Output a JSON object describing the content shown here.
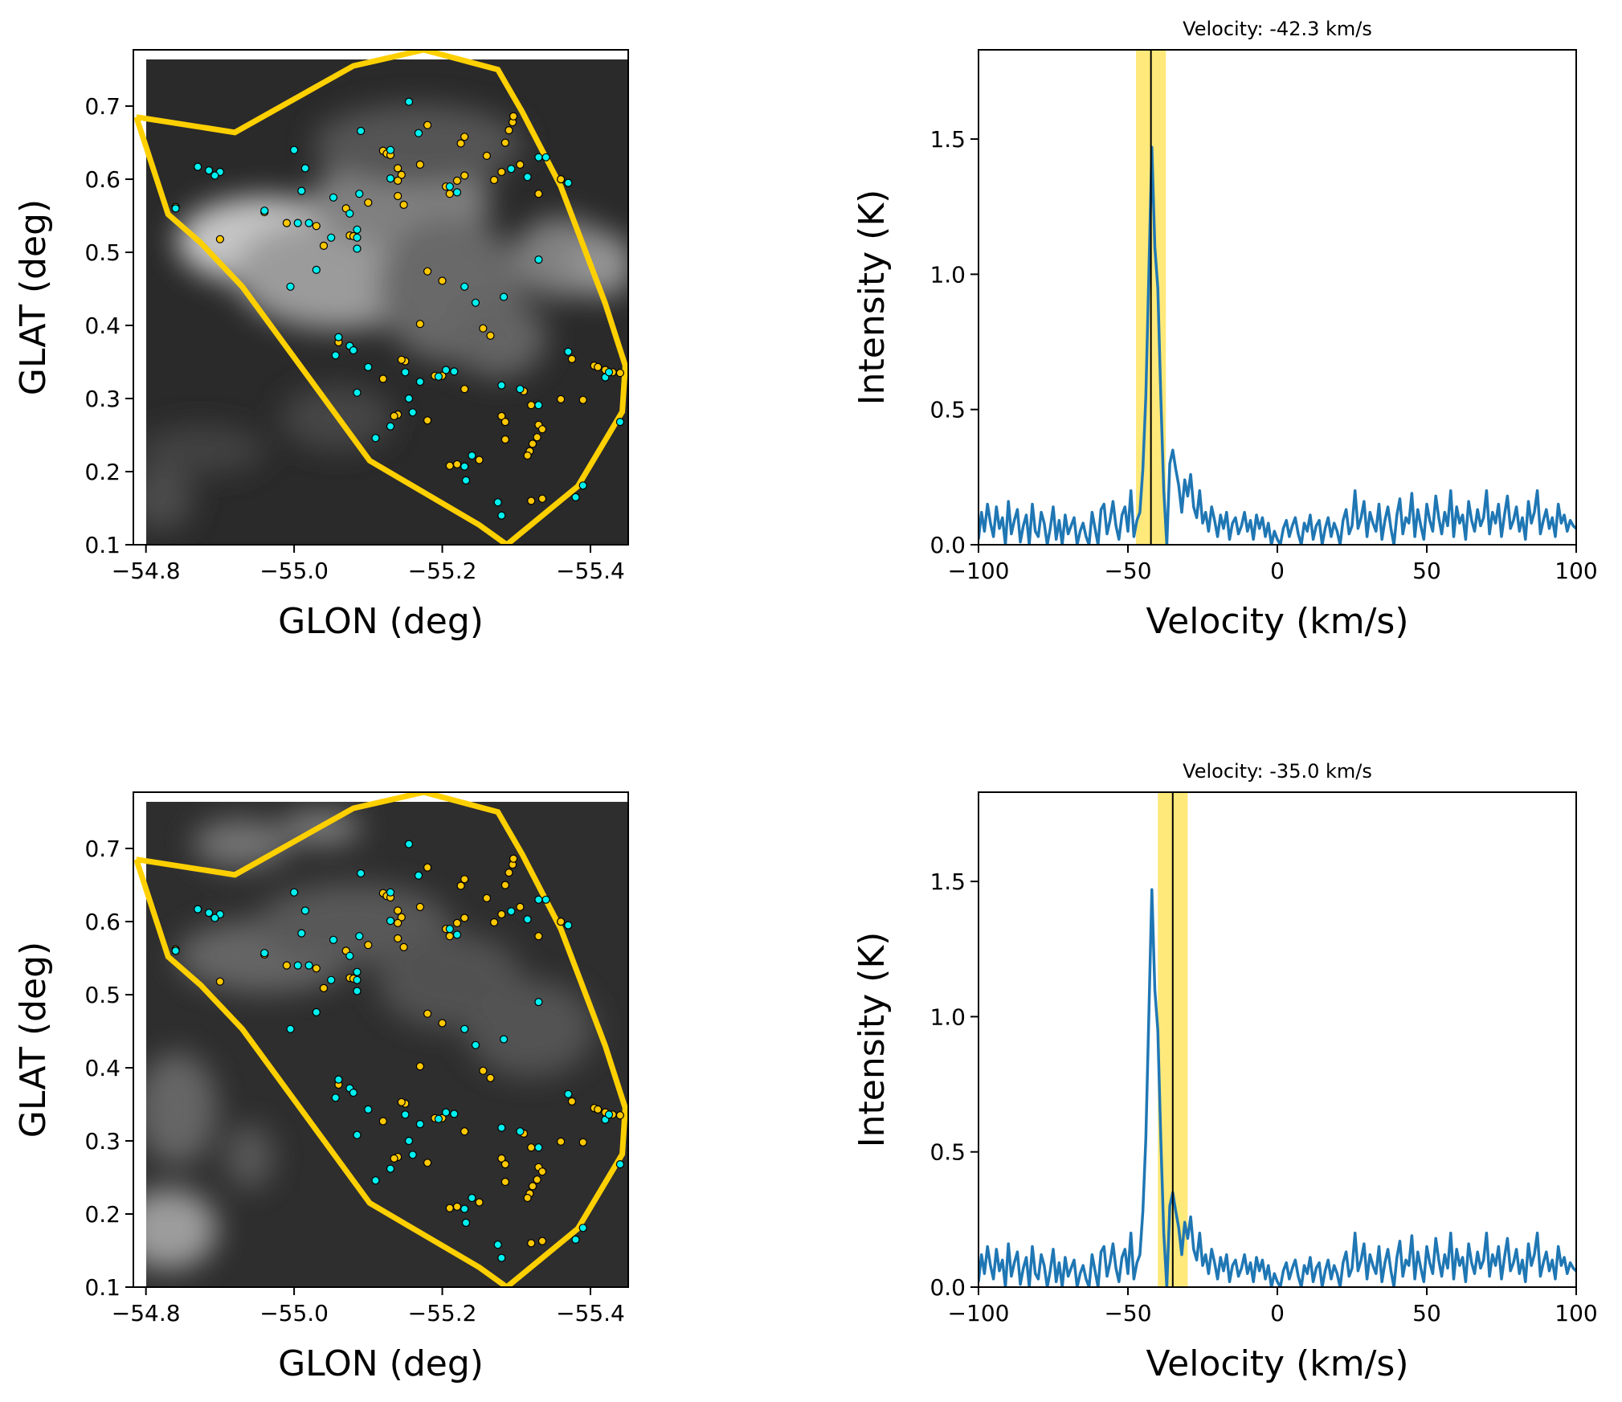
{
  "figure": {
    "panels": [
      "map-top",
      "spectrum-top",
      "map-bottom",
      "spectrum-bottom"
    ]
  },
  "colors": {
    "polygon": "#ffd000",
    "point_cyan": "#00f0f0",
    "point_gold": "#ffc800",
    "spectrum_line": "#1f77b4",
    "band": "#ffe14d",
    "marker_line": "#000000"
  },
  "chart_data": [
    {
      "id": "map-top",
      "type": "scatter",
      "title": "",
      "xlabel": "GLON (deg)",
      "ylabel": "GLAT (deg)",
      "xlim": [
        -54.783,
        -55.451
      ],
      "ylim": [
        0.1,
        0.777
      ],
      "xticks": [
        -54.8,
        -55.0,
        -55.2,
        -55.4
      ],
      "xtick_labels": [
        "−54.8",
        "−55.0",
        "−55.2",
        "−55.4"
      ],
      "yticks": [
        0.1,
        0.2,
        0.3,
        0.4,
        0.5,
        0.6,
        0.7
      ],
      "ytick_labels": [
        "0.1",
        "0.2",
        "0.3",
        "0.4",
        "0.5",
        "0.6",
        "0.7"
      ],
      "background": "grayscale intensity map (integrated emission)",
      "emission_velocity_kms": -42.3
    },
    {
      "id": "spectrum-top",
      "type": "line",
      "title": "Velocity: -42.3 km/s",
      "xlabel": "Velocity (km/s)",
      "ylabel": "Intensity (K)",
      "xlim": [
        -100,
        100
      ],
      "ylim": [
        0,
        1.83
      ],
      "xticks": [
        -100,
        -50,
        0,
        50,
        100
      ],
      "xtick_labels": [
        "−100",
        "−50",
        "0",
        "50",
        "100"
      ],
      "yticks": [
        0.0,
        0.5,
        1.0,
        1.5
      ],
      "ytick_labels": [
        "0.0",
        "0.5",
        "1.0",
        "1.5"
      ],
      "marker_velocity": -42.3,
      "band": [
        -47.3,
        -37.3
      ]
    },
    {
      "id": "map-bottom",
      "type": "scatter",
      "title": "",
      "xlabel": "GLON (deg)",
      "ylabel": "GLAT (deg)",
      "xlim": [
        -54.783,
        -55.451
      ],
      "ylim": [
        0.1,
        0.777
      ],
      "xticks": [
        -54.8,
        -55.0,
        -55.2,
        -55.4
      ],
      "xtick_labels": [
        "−54.8",
        "−55.0",
        "−55.2",
        "−55.4"
      ],
      "yticks": [
        0.1,
        0.2,
        0.3,
        0.4,
        0.5,
        0.6,
        0.7
      ],
      "ytick_labels": [
        "0.1",
        "0.2",
        "0.3",
        "0.4",
        "0.5",
        "0.6",
        "0.7"
      ],
      "background": "grayscale intensity map (integrated emission)",
      "emission_velocity_kms": -35.0
    },
    {
      "id": "spectrum-bottom",
      "type": "line",
      "title": "Velocity: -35.0 km/s",
      "xlabel": "Velocity (km/s)",
      "ylabel": "Intensity (K)",
      "xlim": [
        -100,
        100
      ],
      "ylim": [
        0,
        1.83
      ],
      "xticks": [
        -100,
        -50,
        0,
        50,
        100
      ],
      "xtick_labels": [
        "−100",
        "−50",
        "0",
        "50",
        "100"
      ],
      "yticks": [
        0.0,
        0.5,
        1.0,
        1.5
      ],
      "ytick_labels": [
        "0.0",
        "0.5",
        "1.0",
        "1.5"
      ],
      "marker_velocity": -35.0,
      "band": [
        -40.0,
        -30.0
      ]
    }
  ],
  "region_polygon": [
    [
      -54.787,
      0.685
    ],
    [
      -54.92,
      0.664
    ],
    [
      -55.08,
      0.755
    ],
    [
      -55.175,
      0.777
    ],
    [
      -55.275,
      0.75
    ],
    [
      -55.308,
      0.692
    ],
    [
      -55.36,
      0.59
    ],
    [
      -55.42,
      0.43
    ],
    [
      -55.447,
      0.345
    ],
    [
      -55.443,
      0.282
    ],
    [
      -55.383,
      0.18
    ],
    [
      -55.287,
      0.1
    ],
    [
      -55.25,
      0.127
    ],
    [
      -55.102,
      0.215
    ],
    [
      -54.93,
      0.453
    ],
    [
      -54.874,
      0.513
    ],
    [
      -54.83,
      0.552
    ],
    [
      -54.787,
      0.685
    ]
  ],
  "points_cyan": [
    [
      -54.84,
      0.56
    ],
    [
      -54.87,
      0.617
    ],
    [
      -54.9,
      0.61
    ],
    [
      -54.893,
      0.605
    ],
    [
      -54.885,
      0.612
    ],
    [
      -54.96,
      0.557
    ],
    [
      -55.0,
      0.64
    ],
    [
      -55.005,
      0.54
    ],
    [
      -55.01,
      0.584
    ],
    [
      -54.995,
      0.453
    ],
    [
      -55.015,
      0.615
    ],
    [
      -55.03,
      0.476
    ],
    [
      -55.02,
      0.54
    ],
    [
      -55.05,
      0.52
    ],
    [
      -55.053,
      0.575
    ],
    [
      -55.075,
      0.553
    ],
    [
      -55.085,
      0.52
    ],
    [
      -55.085,
      0.505
    ],
    [
      -55.085,
      0.531
    ],
    [
      -55.09,
      0.666
    ],
    [
      -55.088,
      0.58
    ],
    [
      -55.13,
      0.601
    ],
    [
      -55.155,
      0.706
    ],
    [
      -55.168,
      0.663
    ],
    [
      -55.13,
      0.64
    ],
    [
      -55.06,
      0.384
    ],
    [
      -55.075,
      0.372
    ],
    [
      -55.08,
      0.366
    ],
    [
      -55.056,
      0.359
    ],
    [
      -55.1,
      0.343
    ],
    [
      -55.085,
      0.308
    ],
    [
      -55.13,
      0.262
    ],
    [
      -55.15,
      0.336
    ],
    [
      -55.17,
      0.323
    ],
    [
      -55.195,
      0.33
    ],
    [
      -55.16,
      0.281
    ],
    [
      -55.11,
      0.246
    ],
    [
      -55.216,
      0.337
    ],
    [
      -55.205,
      0.339
    ],
    [
      -55.21,
      0.59
    ],
    [
      -55.22,
      0.582
    ],
    [
      -55.23,
      0.453
    ],
    [
      -55.245,
      0.431
    ],
    [
      -55.283,
      0.439
    ],
    [
      -55.293,
      0.614
    ],
    [
      -55.315,
      0.603
    ],
    [
      -55.33,
      0.63
    ],
    [
      -55.34,
      0.63
    ],
    [
      -55.37,
      0.595
    ],
    [
      -55.33,
      0.49
    ],
    [
      -55.37,
      0.364
    ],
    [
      -55.28,
      0.318
    ],
    [
      -55.305,
      0.313
    ],
    [
      -55.33,
      0.291
    ],
    [
      -55.24,
      0.222
    ],
    [
      -55.23,
      0.207
    ],
    [
      -55.232,
      0.188
    ],
    [
      -55.275,
      0.158
    ],
    [
      -55.28,
      0.14
    ],
    [
      -55.38,
      0.165
    ],
    [
      -55.39,
      0.181
    ],
    [
      -55.42,
      0.329
    ],
    [
      -55.425,
      0.336
    ],
    [
      -55.44,
      0.268
    ],
    [
      -55.155,
      0.3
    ]
  ],
  "points_gold": [
    [
      -54.84,
      0.562
    ],
    [
      -54.9,
      0.518
    ],
    [
      -54.96,
      0.555
    ],
    [
      -54.99,
      0.54
    ],
    [
      -55.03,
      0.536
    ],
    [
      -55.04,
      0.509
    ],
    [
      -55.07,
      0.56
    ],
    [
      -55.075,
      0.523
    ],
    [
      -55.08,
      0.522
    ],
    [
      -55.1,
      0.568
    ],
    [
      -55.12,
      0.639
    ],
    [
      -55.125,
      0.635
    ],
    [
      -55.13,
      0.633
    ],
    [
      -55.14,
      0.615
    ],
    [
      -55.145,
      0.606
    ],
    [
      -55.14,
      0.598
    ],
    [
      -55.14,
      0.577
    ],
    [
      -55.148,
      0.565
    ],
    [
      -55.17,
      0.62
    ],
    [
      -55.18,
      0.674
    ],
    [
      -55.21,
      0.58
    ],
    [
      -55.205,
      0.59
    ],
    [
      -55.22,
      0.598
    ],
    [
      -55.23,
      0.605
    ],
    [
      -55.225,
      0.649
    ],
    [
      -55.23,
      0.658
    ],
    [
      -55.26,
      0.632
    ],
    [
      -55.27,
      0.599
    ],
    [
      -55.28,
      0.61
    ],
    [
      -55.285,
      0.65
    ],
    [
      -55.29,
      0.667
    ],
    [
      -55.295,
      0.678
    ],
    [
      -55.296,
      0.686
    ],
    [
      -55.305,
      0.62
    ],
    [
      -55.33,
      0.58
    ],
    [
      -55.36,
      0.6
    ],
    [
      -55.18,
      0.474
    ],
    [
      -55.2,
      0.461
    ],
    [
      -55.17,
      0.402
    ],
    [
      -55.15,
      0.351
    ],
    [
      -55.145,
      0.353
    ],
    [
      -55.06,
      0.377
    ],
    [
      -55.12,
      0.327
    ],
    [
      -55.19,
      0.331
    ],
    [
      -55.2,
      0.331
    ],
    [
      -55.255,
      0.396
    ],
    [
      -55.265,
      0.386
    ],
    [
      -55.23,
      0.313
    ],
    [
      -55.14,
      0.278
    ],
    [
      -55.135,
      0.276
    ],
    [
      -55.18,
      0.27
    ],
    [
      -55.25,
      0.216
    ],
    [
      -55.22,
      0.21
    ],
    [
      -55.21,
      0.208
    ],
    [
      -55.28,
      0.276
    ],
    [
      -55.285,
      0.268
    ],
    [
      -55.285,
      0.244
    ],
    [
      -55.31,
      0.31
    ],
    [
      -55.32,
      0.291
    ],
    [
      -55.33,
      0.264
    ],
    [
      -55.335,
      0.258
    ],
    [
      -55.328,
      0.247
    ],
    [
      -55.322,
      0.238
    ],
    [
      -55.318,
      0.228
    ],
    [
      -55.315,
      0.222
    ],
    [
      -55.32,
      0.16
    ],
    [
      -55.36,
      0.299
    ],
    [
      -55.375,
      0.354
    ],
    [
      -55.39,
      0.298
    ],
    [
      -55.405,
      0.345
    ],
    [
      -55.41,
      0.343
    ],
    [
      -55.42,
      0.339
    ],
    [
      -55.43,
      0.336
    ],
    [
      -55.44,
      0.335
    ],
    [
      -55.335,
      0.163
    ]
  ],
  "spectrum": {
    "v_start": -100,
    "v_step": 1,
    "values": [
      0.02,
      0.12,
      0.05,
      0.15,
      0.08,
      0.03,
      0.14,
      0.06,
      0.1,
      0.0,
      0.16,
      0.04,
      0.09,
      0.13,
      0.01,
      0.07,
      0.11,
      0.0,
      0.15,
      0.05,
      0.03,
      0.12,
      0.08,
      0.0,
      0.06,
      0.14,
      0.02,
      0.09,
      0.0,
      0.11,
      0.04,
      0.07,
      0.1,
      0.0,
      0.05,
      0.08,
      0.03,
      0.0,
      0.12,
      0.06,
      0.0,
      0.13,
      0.15,
      0.04,
      0.09,
      0.16,
      0.07,
      0.02,
      0.11,
      0.14,
      0.05,
      0.2,
      0.03,
      0.09,
      0.12,
      0.28,
      0.55,
      1.0,
      1.47,
      1.1,
      0.95,
      0.55,
      0.2,
      0.0,
      0.3,
      0.35,
      0.28,
      0.22,
      0.12,
      0.24,
      0.18,
      0.26,
      0.14,
      0.1,
      0.2,
      0.08,
      0.12,
      0.05,
      0.14,
      0.09,
      0.03,
      0.11,
      0.06,
      0.12,
      0.02,
      0.08,
      0.1,
      0.04,
      0.07,
      0.12,
      0.05,
      0.09,
      0.02,
      0.11,
      0.06,
      0.1,
      0.03,
      0.08,
      0.0,
      0.05,
      0.02,
      0.0,
      0.06,
      0.09,
      0.03,
      0.07,
      0.1,
      0.04,
      0.0,
      0.08,
      0.05,
      0.11,
      0.02,
      0.07,
      0.09,
      0.0,
      0.06,
      0.1,
      0.03,
      0.08,
      0.05,
      0.0,
      0.09,
      0.13,
      0.04,
      0.07,
      0.2,
      0.06,
      0.1,
      0.16,
      0.03,
      0.12,
      0.08,
      0.05,
      0.15,
      0.02,
      0.09,
      0.14,
      0.06,
      0.0,
      0.11,
      0.17,
      0.04,
      0.1,
      0.08,
      0.19,
      0.03,
      0.13,
      0.07,
      0.02,
      0.15,
      0.09,
      0.05,
      0.18,
      0.1,
      0.04,
      0.12,
      0.07,
      0.2,
      0.03,
      0.14,
      0.08,
      0.11,
      0.02,
      0.16,
      0.09,
      0.05,
      0.13,
      0.07,
      0.1,
      0.2,
      0.04,
      0.12,
      0.08,
      0.15,
      0.03,
      0.11,
      0.18,
      0.06,
      0.09,
      0.14,
      0.05,
      0.1,
      0.02,
      0.16,
      0.08,
      0.12,
      0.2,
      0.04,
      0.09,
      0.13,
      0.06,
      0.1,
      0.03,
      0.15,
      0.08,
      0.11,
      0.05,
      0.09,
      0.07,
      0.06
    ]
  }
}
